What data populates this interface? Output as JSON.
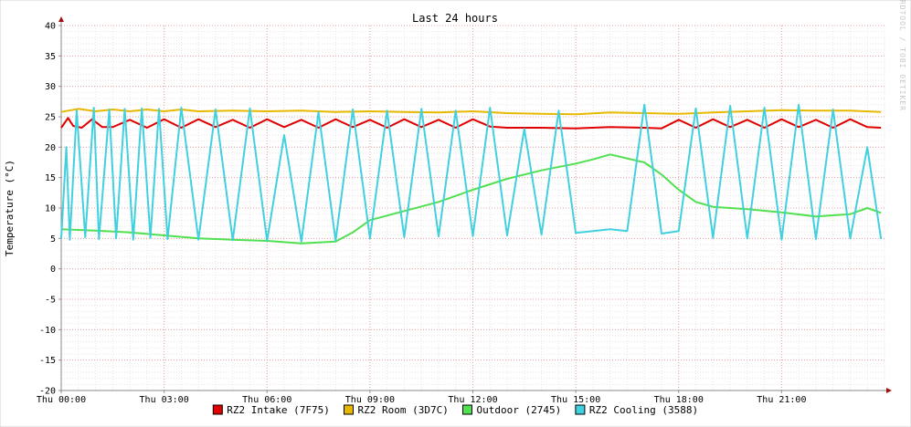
{
  "chart_data": {
    "type": "line",
    "title": "Last 24 hours",
    "ylabel": "Temperature (°C)",
    "watermark": "RRDTOOL / TOBI OETIKER",
    "ylim": [
      -20,
      40
    ],
    "yticks": [
      40,
      35,
      30,
      25,
      20,
      15,
      10,
      5,
      0,
      -5,
      -10,
      -15,
      -20
    ],
    "xlim": [
      0,
      24
    ],
    "xticks": [
      {
        "x": 0,
        "label": "Thu 00:00"
      },
      {
        "x": 3,
        "label": "Thu 03:00"
      },
      {
        "x": 6,
        "label": "Thu 06:00"
      },
      {
        "x": 9,
        "label": "Thu 09:00"
      },
      {
        "x": 12,
        "label": "Thu 12:00"
      },
      {
        "x": 15,
        "label": "Thu 15:00"
      },
      {
        "x": 18,
        "label": "Thu 18:00"
      },
      {
        "x": 21,
        "label": "Thu 21:00"
      }
    ],
    "grid": true,
    "legend_position": "bottom",
    "series": [
      {
        "name": "RZ2 Intake (7F75)",
        "color": "#e00000",
        "x": [
          0,
          0.2,
          0.35,
          0.6,
          0.9,
          1.2,
          1.5,
          2.0,
          2.5,
          3.0,
          3.5,
          4.0,
          4.5,
          5.0,
          5.5,
          6.0,
          6.5,
          7.0,
          7.5,
          8.0,
          8.5,
          9.0,
          9.5,
          10.0,
          10.5,
          11.0,
          11.5,
          12.0,
          12.5,
          13.0,
          14.0,
          15.0,
          16.0,
          17.0,
          17.5,
          18.0,
          18.5,
          19.0,
          19.5,
          20.0,
          20.5,
          21.0,
          21.5,
          22.0,
          22.5,
          23.0,
          23.5,
          23.9
        ],
        "y": [
          23.2,
          24.8,
          23.5,
          23.2,
          24.6,
          23.3,
          23.3,
          24.5,
          23.2,
          24.6,
          23.2,
          24.6,
          23.3,
          24.5,
          23.2,
          24.6,
          23.3,
          24.5,
          23.2,
          24.6,
          23.3,
          24.5,
          23.2,
          24.6,
          23.3,
          24.5,
          23.2,
          24.6,
          23.4,
          23.2,
          23.2,
          23.1,
          23.3,
          23.2,
          23.1,
          24.5,
          23.2,
          24.6,
          23.3,
          24.5,
          23.2,
          24.6,
          23.3,
          24.5,
          23.2,
          24.6,
          23.3,
          23.2
        ]
      },
      {
        "name": "RZ2 Room (3D7C)",
        "color": "#e8b800",
        "x": [
          0,
          0.5,
          1.0,
          1.5,
          2.0,
          2.5,
          3.0,
          3.5,
          4.0,
          5.0,
          6.0,
          7.0,
          8.0,
          9.0,
          10.0,
          11.0,
          12.0,
          13.0,
          14.0,
          15.0,
          16.0,
          17.0,
          18.0,
          19.0,
          20.0,
          21.0,
          22.0,
          23.0,
          23.9
        ],
        "y": [
          25.8,
          26.3,
          25.9,
          26.2,
          25.9,
          26.2,
          25.9,
          26.2,
          25.9,
          26.0,
          25.9,
          26.0,
          25.8,
          25.9,
          25.8,
          25.7,
          25.9,
          25.6,
          25.5,
          25.4,
          25.7,
          25.6,
          25.5,
          25.7,
          25.9,
          26.1,
          26.0,
          26.0,
          25.8
        ]
      },
      {
        "name": "Outdoor (2745)",
        "color": "#50e050",
        "x": [
          0,
          1.0,
          2.0,
          3.0,
          4.0,
          5.0,
          6.0,
          7.0,
          8.0,
          8.5,
          9.0,
          10.0,
          11.0,
          12.0,
          13.0,
          14.0,
          15.0,
          15.5,
          16.0,
          17.0,
          17.5,
          18.0,
          18.5,
          19.0,
          20.0,
          21.0,
          22.0,
          23.0,
          23.5,
          23.9
        ],
        "y": [
          6.5,
          6.3,
          6.0,
          5.5,
          5.0,
          4.8,
          4.6,
          4.2,
          4.5,
          6.0,
          8.0,
          9.5,
          11.0,
          13.0,
          14.8,
          16.2,
          17.3,
          18.0,
          18.8,
          17.5,
          15.5,
          13.0,
          11.0,
          10.2,
          9.8,
          9.3,
          8.6,
          9.0,
          10.0,
          9.2
        ]
      },
      {
        "name": "RZ2 Cooling (3588)",
        "color": "#40d0e0",
        "x": [
          0,
          0.15,
          0.25,
          0.45,
          0.7,
          0.95,
          1.1,
          1.4,
          1.6,
          1.85,
          2.1,
          2.35,
          2.6,
          2.85,
          3.1,
          3.5,
          4.0,
          4.5,
          5.0,
          5.5,
          6.0,
          6.5,
          7.0,
          7.5,
          8.0,
          8.5,
          9.0,
          9.5,
          10.0,
          10.5,
          11.0,
          11.5,
          12.0,
          12.5,
          13.0,
          13.5,
          14.0,
          14.5,
          15.0,
          15.5,
          16.0,
          16.5,
          17.0,
          17.5,
          18.0,
          18.5,
          19.0,
          19.5,
          20.0,
          20.5,
          21.0,
          21.5,
          22.0,
          22.5,
          23.0,
          23.5,
          23.9
        ],
        "y": [
          5.0,
          20.0,
          4.8,
          26.0,
          5.2,
          26.5,
          4.9,
          26.2,
          5.0,
          26.3,
          4.8,
          26.4,
          5.1,
          26.3,
          4.9,
          26.5,
          4.8,
          26.2,
          4.7,
          26.4,
          4.6,
          22.0,
          4.5,
          25.8,
          4.6,
          26.2,
          5.0,
          26.0,
          5.2,
          26.3,
          5.3,
          26.0,
          5.4,
          26.5,
          5.5,
          23.0,
          5.6,
          26.0,
          5.9,
          6.2,
          6.5,
          6.2,
          27.0,
          5.8,
          6.2,
          26.4,
          5.1,
          26.8,
          5.0,
          26.5,
          4.8,
          27.0,
          4.9,
          26.2,
          5.0,
          20.0,
          4.9
        ]
      }
    ]
  }
}
